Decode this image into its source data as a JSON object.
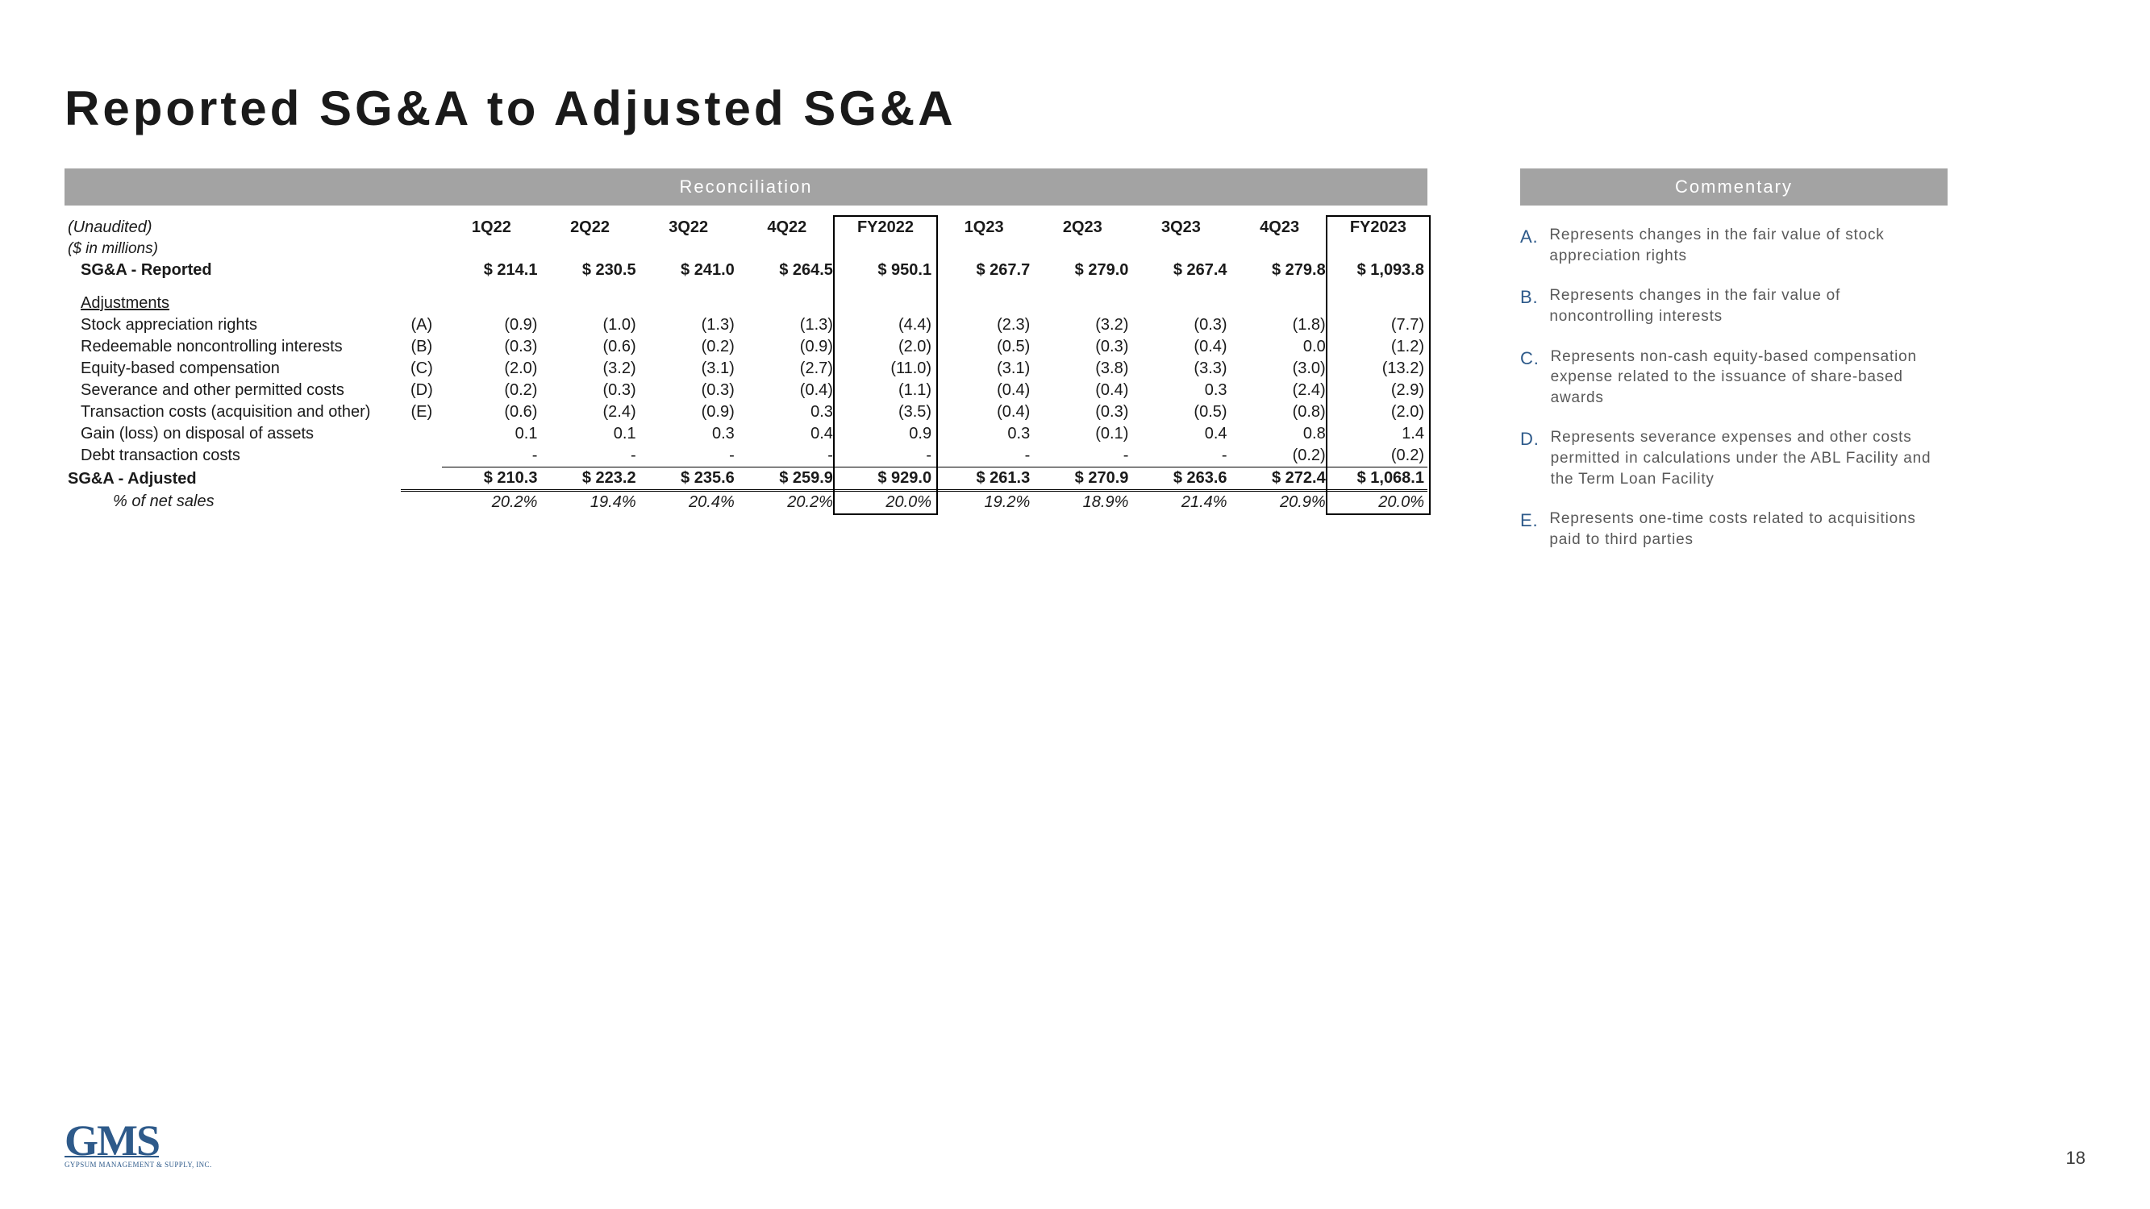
{
  "page": {
    "title": "Reported SG&A to Adjusted SG&A",
    "number": "18"
  },
  "reconciliation": {
    "header": "Reconciliation",
    "unaudited": "(Unaudited)",
    "units": "($ in millions)",
    "columns": [
      "1Q22",
      "2Q22",
      "3Q22",
      "4Q22",
      "FY2022",
      "1Q23",
      "2Q23",
      "3Q23",
      "4Q23",
      "FY2023"
    ],
    "rows": {
      "reported": {
        "label": "SG&A - Reported",
        "values": [
          "$  214.1",
          "$  230.5",
          "$  241.0",
          "$  264.5",
          "$  950.1",
          "$  267.7",
          "$  279.0",
          "$  267.4",
          "$  279.8",
          "$ 1,093.8"
        ]
      },
      "adjustments_label": "Adjustments",
      "adj": [
        {
          "label": "Stock appreciation rights",
          "note": "(A)",
          "values": [
            "(0.9)",
            "(1.0)",
            "(1.3)",
            "(1.3)",
            "(4.4)",
            "(2.3)",
            "(3.2)",
            "(0.3)",
            "(1.8)",
            "(7.7)"
          ]
        },
        {
          "label": "Redeemable noncontrolling interests",
          "note": "(B)",
          "values": [
            "(0.3)",
            "(0.6)",
            "(0.2)",
            "(0.9)",
            "(2.0)",
            "(0.5)",
            "(0.3)",
            "(0.4)",
            "0.0",
            "(1.2)"
          ]
        },
        {
          "label": "Equity-based compensation",
          "note": "(C)",
          "values": [
            "(2.0)",
            "(3.2)",
            "(3.1)",
            "(2.7)",
            "(11.0)",
            "(3.1)",
            "(3.8)",
            "(3.3)",
            "(3.0)",
            "(13.2)"
          ]
        },
        {
          "label": "Severance and other permitted costs",
          "note": "(D)",
          "values": [
            "(0.2)",
            "(0.3)",
            "(0.3)",
            "(0.4)",
            "(1.1)",
            "(0.4)",
            "(0.4)",
            "0.3",
            "(2.4)",
            "(2.9)"
          ]
        },
        {
          "label": "Transaction costs (acquisition and other)",
          "note": "(E)",
          "values": [
            "(0.6)",
            "(2.4)",
            "(0.9)",
            "0.3",
            "(3.5)",
            "(0.4)",
            "(0.3)",
            "(0.5)",
            "(0.8)",
            "(2.0)"
          ]
        },
        {
          "label": "Gain (loss) on disposal of assets",
          "note": "",
          "values": [
            "0.1",
            "0.1",
            "0.3",
            "0.4",
            "0.9",
            "0.3",
            "(0.1)",
            "0.4",
            "0.8",
            "1.4"
          ]
        },
        {
          "label": "Debt transaction costs",
          "note": "",
          "values": [
            "-",
            "-",
            "-",
            "-",
            "-",
            "-",
            "-",
            "-",
            "(0.2)",
            "(0.2)"
          ]
        }
      ],
      "adjusted": {
        "label": "SG&A - Adjusted",
        "values": [
          "$  210.3",
          "$  223.2",
          "$  235.6",
          "$  259.9",
          "$  929.0",
          "$  261.3",
          "$  270.9",
          "$  263.6",
          "$  272.4",
          "$ 1,068.1"
        ]
      },
      "pct": {
        "label": "% of net sales",
        "values": [
          "20.2%",
          "19.4%",
          "20.4%",
          "20.2%",
          "20.0%",
          "19.2%",
          "18.9%",
          "21.4%",
          "20.9%",
          "20.0%"
        ]
      }
    }
  },
  "commentary": {
    "header": "Commentary",
    "items": [
      {
        "letter": "A.",
        "text": "Represents changes in the fair value of stock appreciation rights"
      },
      {
        "letter": "B.",
        "text": "Represents changes in the fair value of noncontrolling interests"
      },
      {
        "letter": "C.",
        "text": "Represents non-cash equity-based compensation expense related to the issuance of share-based awards"
      },
      {
        "letter": "D.",
        "text": "Represents severance expenses and other costs permitted in calculations under the ABL Facility and the Term Loan Facility"
      },
      {
        "letter": "E.",
        "text": "Represents one-time costs related to acquisitions paid to third parties"
      }
    ]
  },
  "logo": {
    "main": "GMS",
    "sub": "GYPSUM MANAGEMENT & SUPPLY, INC."
  }
}
